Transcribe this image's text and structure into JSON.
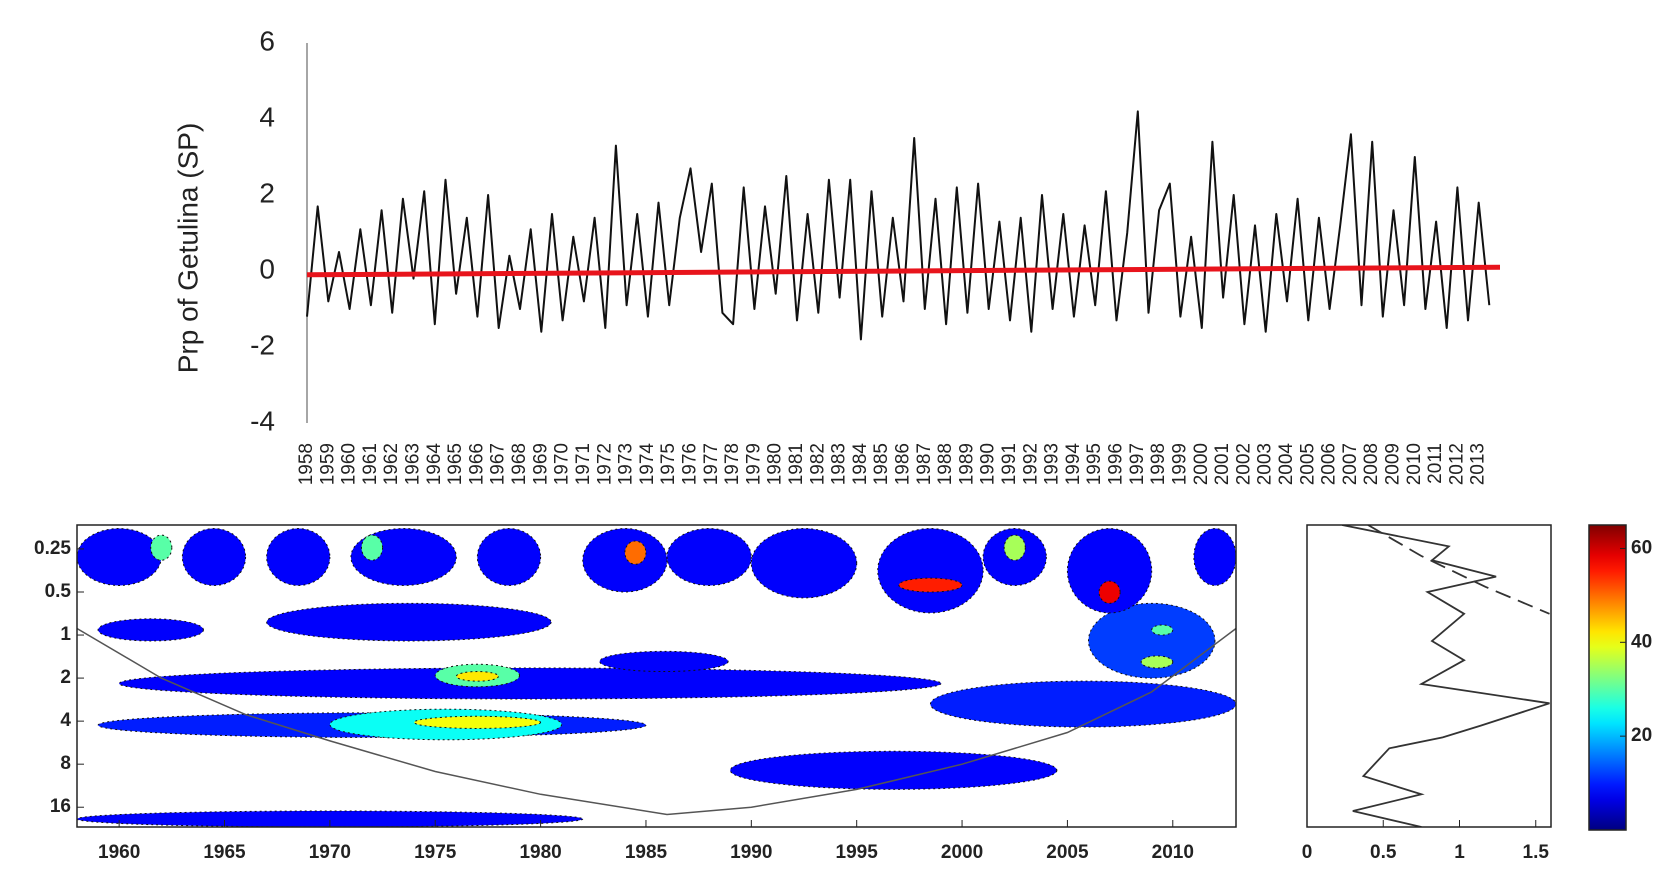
{
  "chart_data": [
    {
      "type": "line",
      "ylabel": "Prp of Getulina (SP)",
      "xlim": [
        1958,
        2014
      ],
      "ylim": [
        -4,
        6
      ],
      "yticks": [
        -4,
        -2,
        0,
        2,
        4,
        6
      ],
      "xticks": [
        1958,
        1959,
        1960,
        1961,
        1962,
        1963,
        1964,
        1965,
        1966,
        1967,
        1968,
        1969,
        1970,
        1971,
        1972,
        1973,
        1974,
        1975,
        1976,
        1977,
        1978,
        1979,
        1980,
        1981,
        1982,
        1983,
        1984,
        1985,
        1986,
        1987,
        1988,
        1989,
        1990,
        1991,
        1992,
        1993,
        1994,
        1995,
        1996,
        1997,
        1998,
        1999,
        2000,
        2001,
        2002,
        2003,
        2004,
        2005,
        2006,
        2007,
        2008,
        2009,
        2010,
        2011,
        2012,
        2013
      ],
      "series": [
        {
          "color": "#111111",
          "x": [
            1958,
            1958.5,
            1959,
            1959.5,
            1960,
            1960.5,
            1961,
            1961.5,
            1962,
            1962.5,
            1963,
            1963.5,
            1964,
            1964.5,
            1965,
            1965.5,
            1966,
            1966.5,
            1967,
            1967.5,
            1968,
            1968.5,
            1969,
            1969.5,
            1970,
            1970.5,
            1971,
            1971.5,
            1972,
            1972.5,
            1973,
            1973.5,
            1974,
            1974.5,
            1975,
            1975.5,
            1976,
            1976.5,
            1977,
            1977.5,
            1978,
            1978.5,
            1979,
            1979.5,
            1980,
            1980.5,
            1981,
            1981.5,
            1982,
            1982.5,
            1983,
            1983.5,
            1984,
            1984.5,
            1985,
            1985.5,
            1986,
            1986.5,
            1987,
            1987.5,
            1988,
            1988.5,
            1989,
            1989.5,
            1990,
            1990.5,
            1991,
            1991.5,
            1992,
            1992.5,
            1993,
            1993.5,
            1994,
            1994.5,
            1995,
            1995.5,
            1996,
            1996.5,
            1997,
            1997.5,
            1998,
            1998.5,
            1999,
            1999.5,
            2000,
            2000.5,
            2001,
            2001.5,
            2002,
            2002.5,
            2003,
            2003.5,
            2004,
            2004.5,
            2005,
            2005.5,
            2006,
            2006.5,
            2007,
            2007.5,
            2008,
            2008.5,
            2009,
            2009.5,
            2010,
            2010.5,
            2011,
            2011.5,
            2012,
            2012.5,
            2013,
            2013.5
          ],
          "values": [
            -1.2,
            1.7,
            -0.8,
            0.5,
            -1.0,
            1.1,
            -0.9,
            1.6,
            -1.1,
            1.9,
            -0.2,
            2.1,
            -1.4,
            2.4,
            -0.6,
            1.4,
            -1.2,
            2.0,
            -1.5,
            0.4,
            -1.0,
            1.1,
            -1.6,
            1.5,
            -1.3,
            0.9,
            -0.8,
            1.4,
            -1.5,
            3.3,
            -0.9,
            1.5,
            -1.2,
            1.8,
            -0.9,
            1.4,
            2.7,
            0.5,
            2.3,
            -1.1,
            -1.4,
            2.2,
            -1.0,
            1.7,
            -0.6,
            2.5,
            -1.3,
            1.5,
            -1.1,
            2.4,
            -0.7,
            2.4,
            -1.8,
            2.1,
            -1.2,
            1.4,
            -0.8,
            3.5,
            -1.0,
            1.9,
            -1.4,
            2.2,
            -1.1,
            2.3,
            -1.0,
            1.3,
            -1.3,
            1.4,
            -1.6,
            2.0,
            -1.0,
            1.5,
            -1.2,
            1.2,
            -0.9,
            2.1,
            -1.3,
            1.0,
            4.2,
            -1.1,
            1.6,
            2.3,
            -1.2,
            0.9,
            -1.5,
            3.4,
            -0.7,
            2.0,
            -1.4,
            1.2,
            -1.6,
            1.5,
            -0.8,
            1.9,
            -1.3,
            1.4,
            -1.0,
            1.2,
            3.6,
            -0.9,
            3.4,
            -1.2,
            1.6,
            -0.9,
            3.0,
            -1.0,
            1.3,
            -1.5,
            2.2,
            -1.3,
            1.8,
            -0.9
          ]
        },
        {
          "color": "#e8141c",
          "x": [
            1958,
            2014
          ],
          "values": [
            -0.1,
            0.1
          ]
        }
      ]
    },
    {
      "type": "wavelet",
      "xlim": [
        1958,
        2013
      ],
      "ylim": [
        0.17,
        22
      ],
      "y_scale": "log2",
      "y_inverted": true,
      "xticks": [
        1960,
        1965,
        1970,
        1975,
        1980,
        1985,
        1990,
        1995,
        2000,
        2005,
        2010
      ],
      "yticks": [
        0.25,
        0.5,
        1,
        2,
        4,
        8,
        16
      ],
      "clim": [
        0,
        65
      ],
      "colormap": "jet",
      "regions": [
        {
          "x": [
            1958,
            1982
          ],
          "y": [
            17,
            22
          ],
          "power": 8
        },
        {
          "x": [
            1989,
            2004.5
          ],
          "y": [
            6.5,
            12
          ],
          "power": 8
        },
        {
          "x": [
            1959,
            1985
          ],
          "y": [
            3.5,
            5.2
          ],
          "power": 10
        },
        {
          "x": [
            1960,
            1999
          ],
          "y": [
            1.7,
            2.8
          ],
          "power": 8
        },
        {
          "x": [
            1998.5,
            2013
          ],
          "y": [
            2.1,
            4.4
          ],
          "power": 10
        },
        {
          "x": [
            1959,
            1964
          ],
          "y": [
            0.77,
            1.1
          ],
          "power": 8
        },
        {
          "x": [
            1967,
            1980.5
          ],
          "y": [
            0.6,
            1.1
          ],
          "power": 8
        },
        {
          "x": [
            1982.8,
            1988.9
          ],
          "y": [
            1.3,
            1.8
          ],
          "power": 8
        },
        {
          "x": [
            2006,
            2012
          ],
          "y": [
            0.6,
            2
          ],
          "power": 12
        },
        {
          "x": [
            1970,
            1981
          ],
          "y": [
            3.3,
            5.4
          ],
          "power": 25
        },
        {
          "x": [
            1974,
            1980
          ],
          "y": [
            3.7,
            4.5
          ],
          "power": 40
        },
        {
          "x": [
            1975,
            1979
          ],
          "y": [
            1.6,
            2.3
          ],
          "power": 30
        },
        {
          "x": [
            1976,
            1978
          ],
          "y": [
            1.8,
            2.1
          ],
          "power": 42
        },
        {
          "x": [
            2008.5,
            2010
          ],
          "y": [
            1.4,
            1.7
          ],
          "power": 35
        },
        {
          "x": [
            2009,
            2010
          ],
          "y": [
            0.85,
            1
          ],
          "power": 30
        },
        {
          "x": [
            1958,
            1962
          ],
          "y": [
            0.18,
            0.45
          ],
          "power": 8
        },
        {
          "x": [
            1963,
            1966
          ],
          "y": [
            0.18,
            0.45
          ],
          "power": 8
        },
        {
          "x": [
            1967,
            1970
          ],
          "y": [
            0.18,
            0.45
          ],
          "power": 8
        },
        {
          "x": [
            1971,
            1976
          ],
          "y": [
            0.18,
            0.45
          ],
          "power": 8
        },
        {
          "x": [
            1977,
            1980
          ],
          "y": [
            0.18,
            0.45
          ],
          "power": 8
        },
        {
          "x": [
            1982,
            1986
          ],
          "y": [
            0.18,
            0.5
          ],
          "power": 8
        },
        {
          "x": [
            1986,
            1990
          ],
          "y": [
            0.18,
            0.45
          ],
          "power": 8
        },
        {
          "x": [
            1990,
            1995
          ],
          "y": [
            0.18,
            0.55
          ],
          "power": 8
        },
        {
          "x": [
            1996,
            2001
          ],
          "y": [
            0.18,
            0.7
          ],
          "power": 8
        },
        {
          "x": [
            2001,
            2004
          ],
          "y": [
            0.18,
            0.45
          ],
          "power": 8
        },
        {
          "x": [
            2005,
            2009
          ],
          "y": [
            0.18,
            0.7
          ],
          "power": 8
        },
        {
          "x": [
            2011,
            2013
          ],
          "y": [
            0.18,
            0.45
          ],
          "power": 8
        },
        {
          "x": [
            1961.5,
            1962.5
          ],
          "y": [
            0.2,
            0.3
          ],
          "power": 30
        },
        {
          "x": [
            1971.5,
            1972.5
          ],
          "y": [
            0.2,
            0.3
          ],
          "power": 30
        },
        {
          "x": [
            1984,
            1985
          ],
          "y": [
            0.22,
            0.32
          ],
          "power": 50
        },
        {
          "x": [
            1997,
            2000
          ],
          "y": [
            0.4,
            0.5
          ],
          "power": 55
        },
        {
          "x": [
            2002,
            2003
          ],
          "y": [
            0.2,
            0.3
          ],
          "power": 35
        },
        {
          "x": [
            2006.5,
            2007.5
          ],
          "y": [
            0.42,
            0.6
          ],
          "power": 58
        }
      ],
      "coi": {
        "color": "#555555",
        "x": [
          1958,
          1962,
          1966,
          1970,
          1975,
          1980,
          1986,
          1990,
          1995,
          2000,
          2005,
          2009,
          2013
        ],
        "periods": [
          0.9,
          2,
          3.6,
          5.5,
          9,
          13,
          18,
          16,
          12,
          8,
          4.8,
          2.5,
          0.9
        ]
      }
    },
    {
      "type": "spectrum",
      "xlim": [
        0,
        1.6
      ],
      "xticks": [
        0,
        0.5,
        1,
        1.5
      ],
      "ylim": [
        0.17,
        22
      ],
      "y_scale": "log2",
      "y_inverted": true,
      "series": [
        {
          "color": "#333333",
          "style": "solid",
          "periods": [
            0.17,
            0.24,
            0.3,
            0.39,
            0.5,
            0.71,
            1.1,
            1.5,
            2.2,
            3.0,
            4.3,
            5.2,
            6.2,
            9.7,
            13,
            17,
            22
          ],
          "values": [
            0.23,
            0.93,
            0.82,
            1.24,
            0.79,
            1.03,
            0.82,
            1.03,
            0.75,
            1.59,
            1.14,
            0.89,
            0.54,
            0.37,
            0.75,
            0.3,
            0.75
          ]
        },
        {
          "color": "#333333",
          "style": "dashed",
          "periods": [
            0.17,
            0.28,
            0.46,
            0.71
          ],
          "values": [
            0.4,
            0.75,
            1.17,
            1.59
          ]
        }
      ]
    },
    {
      "type": "colorbar",
      "clim": [
        0,
        65
      ],
      "ticks": [
        20,
        40,
        60
      ],
      "colormap": "jet"
    }
  ]
}
